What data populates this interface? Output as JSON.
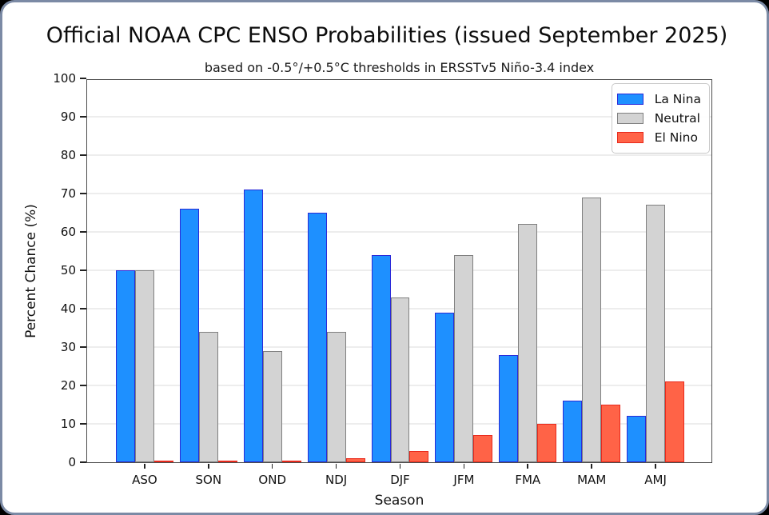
{
  "frame": {
    "background_color": "#000000",
    "card_color": "#ffffff",
    "card_border_color": "#7b8aa5"
  },
  "chart_data": {
    "type": "bar",
    "title": "Official NOAA CPC ENSO Probabilities (issued September 2025)",
    "subtitle": "based on -0.5°/+0.5°C thresholds in ERSSTv5 Niño-3.4 index",
    "xlabel": "Season",
    "ylabel": "Percent Chance (%)",
    "ylim": [
      0,
      100
    ],
    "ytick_step": 10,
    "grid": "horizontal-light",
    "legend_position": "upper right",
    "categories": [
      "ASO",
      "SON",
      "OND",
      "NDJ",
      "DJF",
      "JFM",
      "FMA",
      "MAM",
      "AMJ"
    ],
    "series": [
      {
        "name": "La Nina",
        "color": "#1e90ff",
        "edge_color": "#2a2ad9",
        "values": [
          50,
          66,
          71,
          65,
          54,
          39,
          28,
          16,
          12
        ]
      },
      {
        "name": "Neutral",
        "color": "#d3d3d3",
        "edge_color": "#808080",
        "values": [
          50,
          34,
          29,
          34,
          43,
          54,
          62,
          69,
          67
        ]
      },
      {
        "name": "El Nino",
        "color": "#ff6347",
        "edge_color": "#e8291c",
        "values": [
          0,
          0,
          0,
          1,
          3,
          7,
          10,
          15,
          21
        ]
      }
    ]
  }
}
